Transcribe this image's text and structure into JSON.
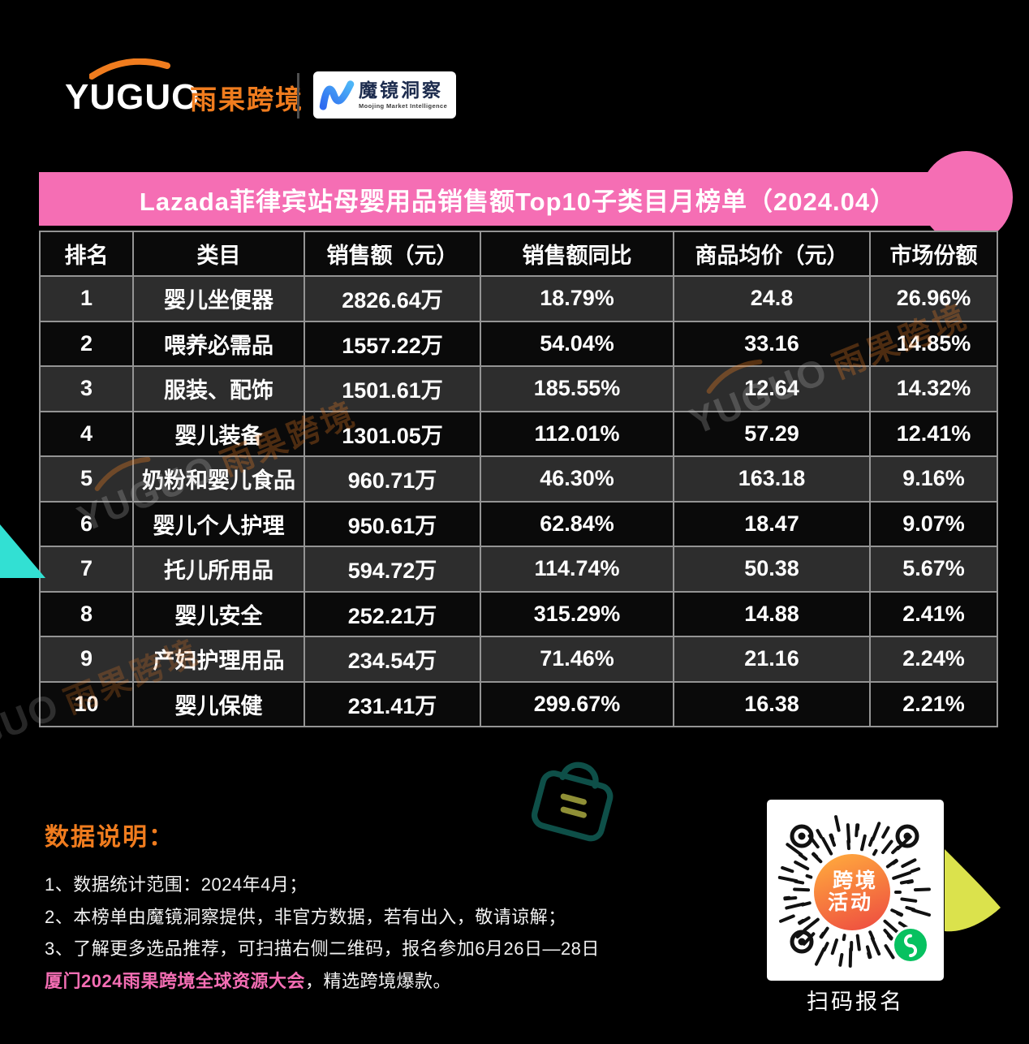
{
  "brand": {
    "yuguo_en": "YUGUO",
    "yuguo_cn": "雨果跨境",
    "moojing_cn": "魔镜洞察",
    "moojing_en": "Moojing Market Intelligence"
  },
  "chart_data": {
    "type": "table",
    "title": "Lazada菲律宾站母婴用品销售额Top10子类目月榜单（2024.04）",
    "columns": [
      "排名",
      "类目",
      "销售额（元）",
      "销售额同比",
      "商品均价（元）",
      "市场份额"
    ],
    "rows": [
      [
        "1",
        "婴儿坐便器",
        "2826.64万",
        "18.79%",
        "24.8",
        "26.96%"
      ],
      [
        "2",
        "喂养必需品",
        "1557.22万",
        "54.04%",
        "33.16",
        "14.85%"
      ],
      [
        "3",
        "服装、配饰",
        "1501.61万",
        "185.55%",
        "12.64",
        "14.32%"
      ],
      [
        "4",
        "婴儿装备",
        "1301.05万",
        "112.01%",
        "57.29",
        "12.41%"
      ],
      [
        "5",
        "奶粉和婴儿食品",
        "960.71万",
        "46.30%",
        "163.18",
        "9.16%"
      ],
      [
        "6",
        "婴儿个人护理",
        "950.61万",
        "62.84%",
        "18.47",
        "9.07%"
      ],
      [
        "7",
        "托儿所用品",
        "594.72万",
        "114.74%",
        "50.38",
        "5.67%"
      ],
      [
        "8",
        "婴儿安全",
        "252.21万",
        "315.29%",
        "14.88",
        "2.41%"
      ],
      [
        "9",
        "产妇护理用品",
        "234.54万",
        "71.46%",
        "21.16",
        "2.24%"
      ],
      [
        "10",
        "婴儿保健",
        "231.41万",
        "299.67%",
        "16.38",
        "2.21%"
      ]
    ]
  },
  "watermark": {
    "en": "YUGUO",
    "cn": "雨果跨境"
  },
  "notes": {
    "heading": "数据说明：",
    "items": [
      "1、数据统计范围：2024年4月；",
      "2、本榜单由魔镜洞察提供，非官方数据，若有出入，敬请谅解；",
      "3、了解更多选品推荐，可扫描右侧二维码，报名参加6月26日—28日"
    ],
    "conference_pink": "厦门2024雨果跨境全球资源大会",
    "conference_rest": "，精选跨境爆款。"
  },
  "qr": {
    "badge_line1": "跨境",
    "badge_line2": "活动",
    "caption": "扫码报名"
  },
  "colors": {
    "pink": "#f56eb4",
    "orange": "#f07c1e",
    "cyan": "#32e0d3",
    "yellow_green": "#dbe24c",
    "wechat_green": "#07c160",
    "qr_orange_light": "#ffa93d",
    "qr_orange_deep": "#ef5340",
    "grid_line": "#949494",
    "row_dark": "#0a0a0a",
    "row_gray": "#2d2d2d",
    "moojing_blue_1": "#2f6bf0",
    "moojing_blue_2": "#4db5f7"
  }
}
